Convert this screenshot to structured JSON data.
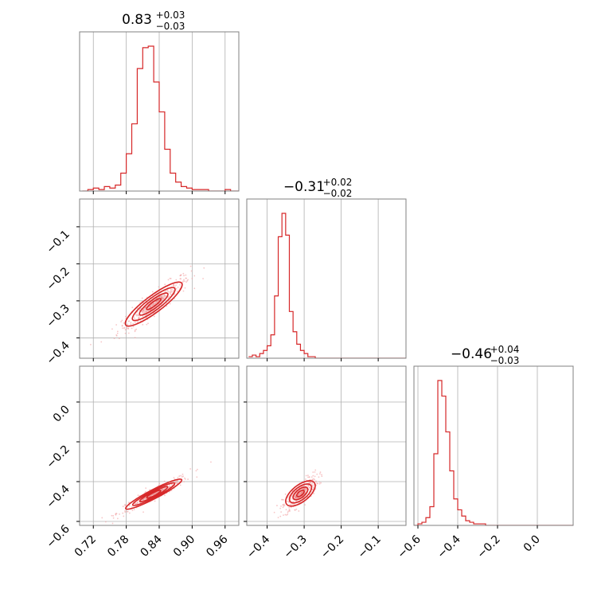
{
  "colors": {
    "accent": "#d62728",
    "grid": "#b0b0b0",
    "frame": "#808080",
    "scatter": "#f2a0a2"
  },
  "chart_data": {
    "type": "corner",
    "parameters": [
      {
        "title": {
          "median": "0.83",
          "plus": "+0.03",
          "minus": "−0.03"
        },
        "range": [
          0.695,
          0.985
        ],
        "ticks": [
          0.72,
          0.78,
          0.84,
          0.9,
          0.96
        ],
        "tick_labels": [
          "0.72",
          "0.78",
          "0.84",
          "0.90",
          "0.96"
        ]
      },
      {
        "title": {
          "median": "−0.31",
          "plus": "+0.02",
          "minus": "−0.02"
        },
        "range": [
          -0.455,
          -0.025
        ],
        "ticks": [
          -0.4,
          -0.3,
          -0.2,
          -0.1
        ],
        "tick_labels": [
          "−0.4",
          "−0.3",
          "−0.2",
          "−0.1"
        ]
      },
      {
        "title": {
          "median": "−0.46",
          "plus": "+0.04",
          "minus": "−0.03"
        },
        "range": [
          -0.62,
          0.18
        ],
        "ticks": [
          -0.6,
          -0.4,
          -0.2,
          0.0
        ],
        "tick_labels": [
          "−0.6",
          "−0.4",
          "−0.2",
          "0.0"
        ]
      }
    ],
    "histograms": [
      {
        "param": 0,
        "bin_start": 0.7,
        "bin_width": 0.01,
        "counts": [
          0,
          1,
          2,
          1,
          3,
          2,
          4,
          12,
          25,
          45,
          82,
          96,
          97,
          73,
          53,
          28,
          12,
          6,
          3,
          2,
          1,
          1,
          1,
          0,
          0,
          0,
          1,
          0,
          0
        ]
      },
      {
        "param": 1,
        "bin_start": -0.45,
        "bin_width": 0.01,
        "counts": [
          1,
          2,
          1,
          3,
          5,
          8,
          15,
          40,
          78,
          93,
          79,
          30,
          17,
          9,
          5,
          3,
          1,
          1,
          0,
          0,
          0,
          0,
          0,
          0,
          0,
          0,
          0,
          0,
          0,
          0,
          0,
          0,
          0,
          0,
          0,
          0,
          0,
          0,
          0,
          0,
          0,
          0,
          0
        ]
      },
      {
        "param": 2,
        "bin_start": -0.62,
        "bin_width": 0.02,
        "counts": [
          0,
          1,
          2,
          5,
          12,
          46,
          93,
          83,
          60,
          35,
          17,
          10,
          6,
          3,
          2,
          1,
          1,
          1,
          0,
          0,
          0,
          0,
          0,
          0,
          0,
          0,
          0,
          0,
          0,
          0,
          0,
          0,
          0,
          0,
          0,
          0,
          0,
          0,
          0,
          0
        ]
      }
    ],
    "joint": [
      {
        "x_param": 0,
        "y_param": 1,
        "slope": 1.11,
        "intercept": -1.23,
        "x_mean": 0.83,
        "x_sd": 0.03,
        "scatter_sd": 0.012
      },
      {
        "x_param": 0,
        "y_param": 2,
        "slope": 1.43,
        "intercept": -1.65,
        "x_mean": 0.83,
        "x_sd": 0.03,
        "scatter_sd": 0.012
      },
      {
        "x_param": 1,
        "y_param": 2,
        "slope": 1.45,
        "intercept": -0.01,
        "x_mean": -0.31,
        "x_sd": 0.022,
        "scatter_sd": 0.022
      }
    ]
  }
}
